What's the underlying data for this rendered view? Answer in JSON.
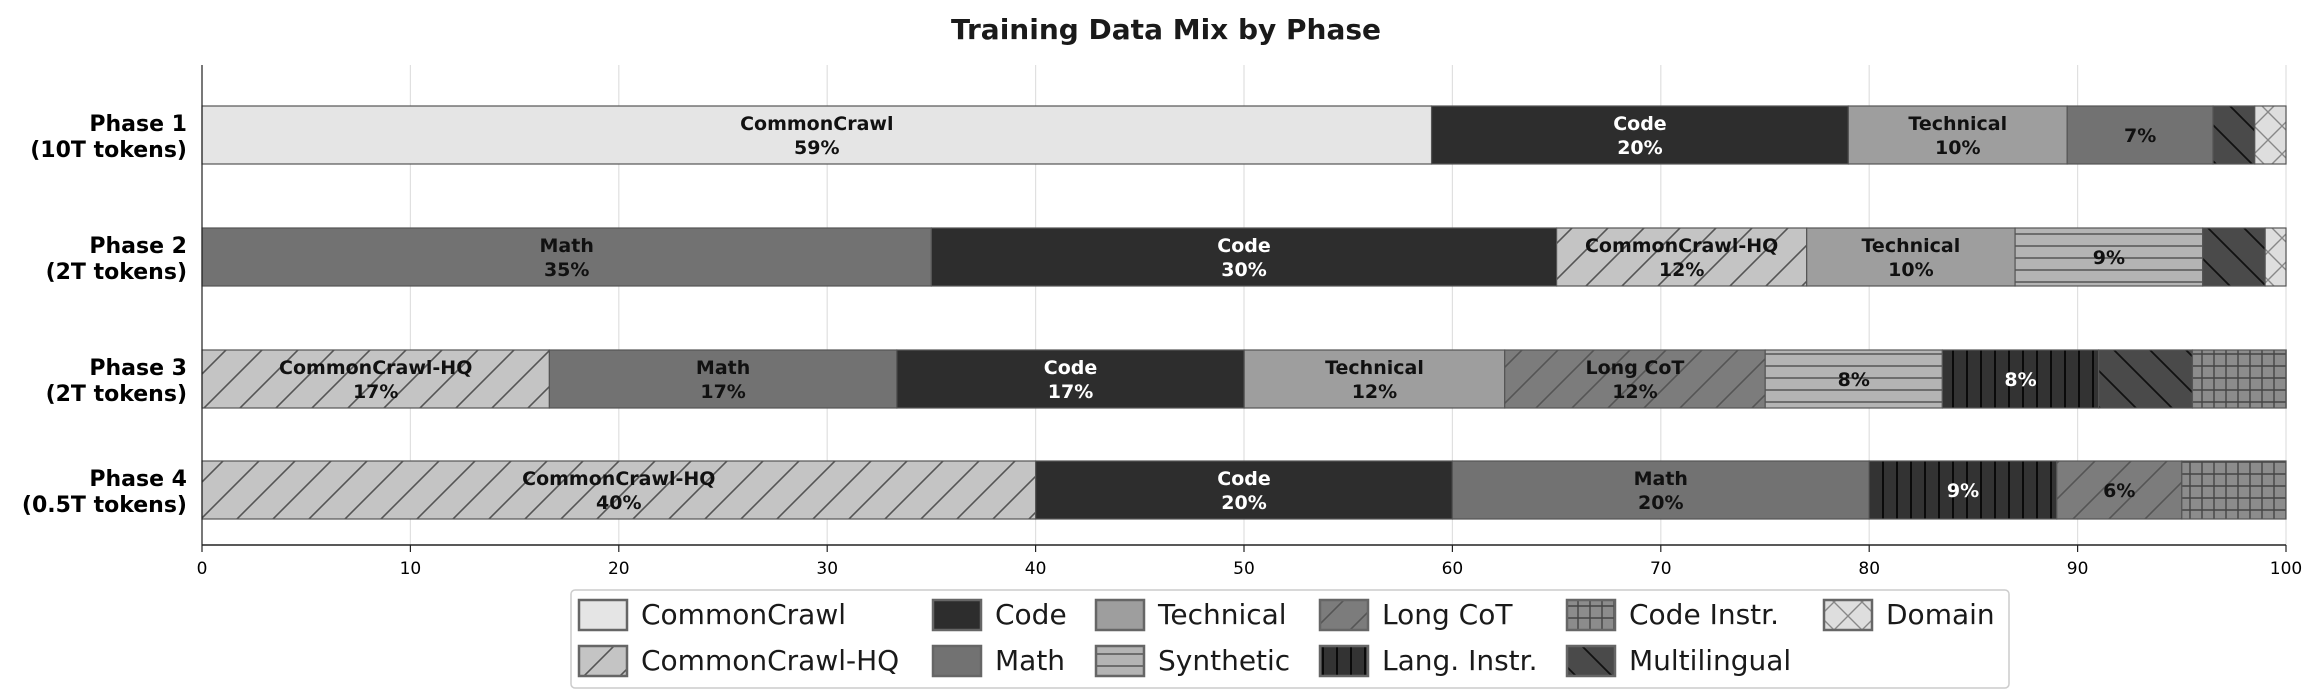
{
  "chart_data": {
    "type": "bar",
    "orientation": "horizontal",
    "stacked": true,
    "title": "Training Data Mix by Phase",
    "xlabel": "",
    "ylabel": "",
    "xlim": [
      0,
      100
    ],
    "xticks": [
      "0",
      "10",
      "20",
      "30",
      "40",
      "50",
      "60",
      "70",
      "80",
      "90",
      "100"
    ],
    "grid": "vertical",
    "legend_position": "bottom-center",
    "categories": [
      {
        "line1": "Phase 1",
        "line2": "(10T tokens)"
      },
      {
        "line1": "Phase 2",
        "line2": "(2T tokens)"
      },
      {
        "line1": "Phase 3",
        "line2": "(2T tokens)"
      },
      {
        "line1": "Phase 4",
        "line2": "(0.5T tokens)"
      }
    ],
    "series_styles": {
      "CommonCrawl": {
        "fill": "#e5e5e5",
        "pattern": "none",
        "text": "#111111"
      },
      "CommonCrawl-HQ": {
        "fill": "#c4c4c4",
        "pattern": "diag",
        "text": "#111111"
      },
      "Code": {
        "fill": "#2d2d2d",
        "pattern": "none",
        "text": "#ffffff"
      },
      "Math": {
        "fill": "#727272",
        "pattern": "none",
        "text": "#111111"
      },
      "Technical": {
        "fill": "#9e9e9e",
        "pattern": "none",
        "text": "#111111"
      },
      "Synthetic": {
        "fill": "#b4b4b4",
        "pattern": "horiz",
        "text": "#111111"
      },
      "Long CoT": {
        "fill": "#7c7c7c",
        "pattern": "diag",
        "text": "#111111"
      },
      "Lang. Instr.": {
        "fill": "#333333",
        "pattern": "vert",
        "text": "#ffffff"
      },
      "Code Instr.": {
        "fill": "#8c8c8c",
        "pattern": "grid",
        "text": "#111111"
      },
      "Multilingual": {
        "fill": "#4a4a4a",
        "pattern": "backdiag",
        "text": "#ffffff"
      },
      "Domain": {
        "fill": "#dedede",
        "pattern": "cross",
        "text": "#111111"
      }
    },
    "bars": [
      {
        "segments": [
          {
            "name": "CommonCrawl",
            "value": 59,
            "label": "CommonCrawl",
            "pct": "59%"
          },
          {
            "name": "Code",
            "value": 20,
            "label": "Code",
            "pct": "20%"
          },
          {
            "name": "Technical",
            "value": 10.5,
            "label": "Technical",
            "pct": "10%"
          },
          {
            "name": "Math",
            "value": 7,
            "label": "",
            "pct": "7%"
          },
          {
            "name": "Multilingual",
            "value": 2,
            "label": "",
            "pct": ""
          },
          {
            "name": "Domain",
            "value": 1.5,
            "label": "",
            "pct": ""
          }
        ]
      },
      {
        "segments": [
          {
            "name": "Math",
            "value": 35,
            "label": "Math",
            "pct": "35%"
          },
          {
            "name": "Code",
            "value": 30,
            "label": "Code",
            "pct": "30%"
          },
          {
            "name": "CommonCrawl-HQ",
            "value": 12,
            "label": "CommonCrawl-HQ",
            "pct": "12%"
          },
          {
            "name": "Technical",
            "value": 10,
            "label": "Technical",
            "pct": "10%"
          },
          {
            "name": "Synthetic",
            "value": 9,
            "label": "",
            "pct": "9%"
          },
          {
            "name": "Multilingual",
            "value": 3,
            "label": "",
            "pct": ""
          },
          {
            "name": "Domain",
            "value": 1,
            "label": "",
            "pct": ""
          }
        ]
      },
      {
        "segments": [
          {
            "name": "CommonCrawl-HQ",
            "value": 16.67,
            "label": "CommonCrawl-HQ",
            "pct": "17%"
          },
          {
            "name": "Math",
            "value": 16.67,
            "label": "Math",
            "pct": "17%"
          },
          {
            "name": "Code",
            "value": 16.67,
            "label": "Code",
            "pct": "17%"
          },
          {
            "name": "Technical",
            "value": 12.5,
            "label": "Technical",
            "pct": "12%"
          },
          {
            "name": "Long CoT",
            "value": 12.5,
            "label": "Long CoT",
            "pct": "12%"
          },
          {
            "name": "Synthetic",
            "value": 8.5,
            "label": "",
            "pct": "8%"
          },
          {
            "name": "Lang. Instr.",
            "value": 7.5,
            "label": "",
            "pct": "8%"
          },
          {
            "name": "Multilingual",
            "value": 4.5,
            "label": "",
            "pct": ""
          },
          {
            "name": "Code Instr.",
            "value": 4.5,
            "label": "",
            "pct": ""
          }
        ]
      },
      {
        "segments": [
          {
            "name": "CommonCrawl-HQ",
            "value": 40,
            "label": "CommonCrawl-HQ",
            "pct": "40%"
          },
          {
            "name": "Code",
            "value": 20,
            "label": "Code",
            "pct": "20%"
          },
          {
            "name": "Math",
            "value": 20,
            "label": "Math",
            "pct": "20%"
          },
          {
            "name": "Lang. Instr.",
            "value": 9,
            "label": "",
            "pct": "9%"
          },
          {
            "name": "Long CoT",
            "value": 6,
            "label": "",
            "pct": "6%"
          },
          {
            "name": "Code Instr.",
            "value": 5,
            "label": "",
            "pct": ""
          }
        ]
      }
    ],
    "legend": [
      [
        "CommonCrawl",
        "Code",
        "Technical",
        "Long CoT",
        "Code Instr.",
        "Domain"
      ],
      [
        "CommonCrawl-HQ",
        "Math",
        "Synthetic",
        "Lang. Instr.",
        "Multilingual"
      ]
    ]
  }
}
